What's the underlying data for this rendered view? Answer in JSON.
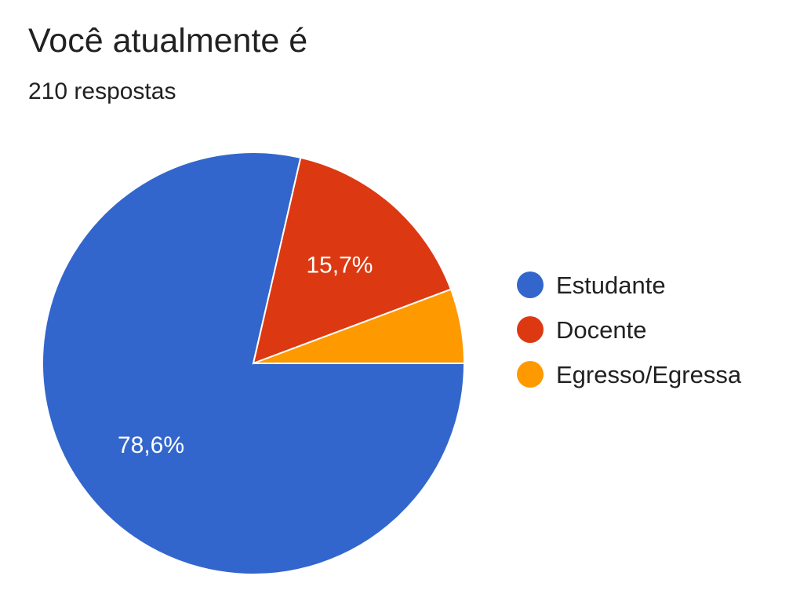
{
  "header": {
    "title": "Você atualmente é",
    "subtitle": "210 respostas"
  },
  "chart_data": {
    "type": "pie",
    "title": "Você atualmente é",
    "subtitle": "210 respostas",
    "categories": [
      "Estudante",
      "Docente",
      "Egresso/Egressa"
    ],
    "values": [
      78.6,
      15.7,
      5.7
    ],
    "colors": [
      "#3366cc",
      "#dc3912",
      "#ff9900"
    ],
    "data_labels": [
      "78,6%",
      "15,7%",
      ""
    ],
    "legend_position": "right"
  }
}
